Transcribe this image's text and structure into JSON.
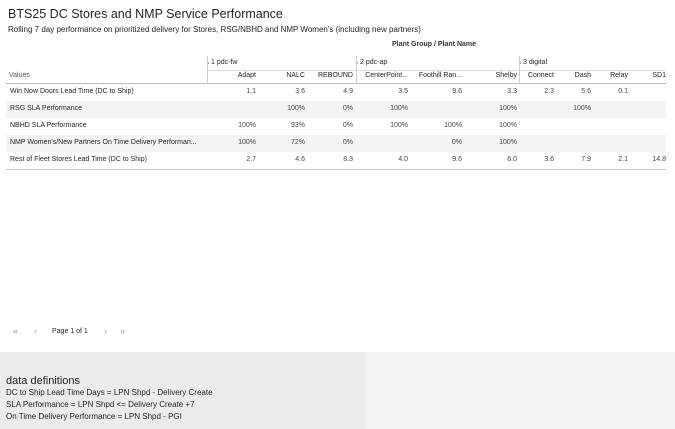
{
  "header": {
    "title": "BTS25 DC Stores and NMP Service Performance",
    "subtitle": "Rolling 7 day performance on prioritized delivery for Stores, RSG/NBHD and NMP Women's (including new partners)"
  },
  "table": {
    "column_header_label": "Plant Group  /  Plant Name",
    "row_header_label": "Values",
    "groups": [
      {
        "label": "1 pdc-fw",
        "span": 3
      },
      {
        "label": "2 pdc-ap",
        "span": 3
      },
      {
        "label": "3 digital",
        "span": 4
      }
    ],
    "columns": [
      "Adapt",
      "NALC",
      "REBOUND",
      "CenterPoint...",
      "Foothill Ran...",
      "Shelby",
      "Connect",
      "Dash",
      "Relay",
      "SD1"
    ],
    "rows": [
      {
        "label": "Win Now Doors Lead Time (DC to Ship)",
        "cells": [
          "1.1",
          "3.6",
          "4.9",
          "3.5",
          "9.6",
          "3.3",
          "2.3",
          "5.6",
          "0.1",
          null
        ]
      },
      {
        "label": "RSG SLA Performance",
        "cells": [
          null,
          "100%",
          "0%",
          "100%",
          null,
          "100%",
          null,
          "100%",
          null,
          null
        ]
      },
      {
        "label": "NBHD SLA Performance",
        "cells": [
          "100%",
          "93%",
          "0%",
          "100%",
          "100%",
          "100%",
          null,
          null,
          null,
          null
        ]
      },
      {
        "label": "NMP Women's/New Partners On Time Delivery Performan...",
        "cells": [
          "100%",
          "72%",
          "0%",
          null,
          "0%",
          "100%",
          null,
          null,
          null,
          null
        ]
      },
      {
        "label": "Rest of Fleet Stores Lead Time (DC to Ship)",
        "cells": [
          "2.7",
          "4.6",
          "8.3",
          "4.0",
          "9.6",
          "6.0",
          "3.6",
          "7.9",
          "2.1",
          "14.8"
        ]
      }
    ]
  },
  "pagination": {
    "label": "Page 1 of 1"
  },
  "definitions": {
    "title": "data definitions",
    "lines": [
      "DC to Ship Lead Time Days = LPN Shpd - Delivery Create",
      "SLA Performance = LPN Shpd <= Delivery Create +7",
      "On Time Delivery Performance = LPN Shpd - PGI"
    ]
  }
}
